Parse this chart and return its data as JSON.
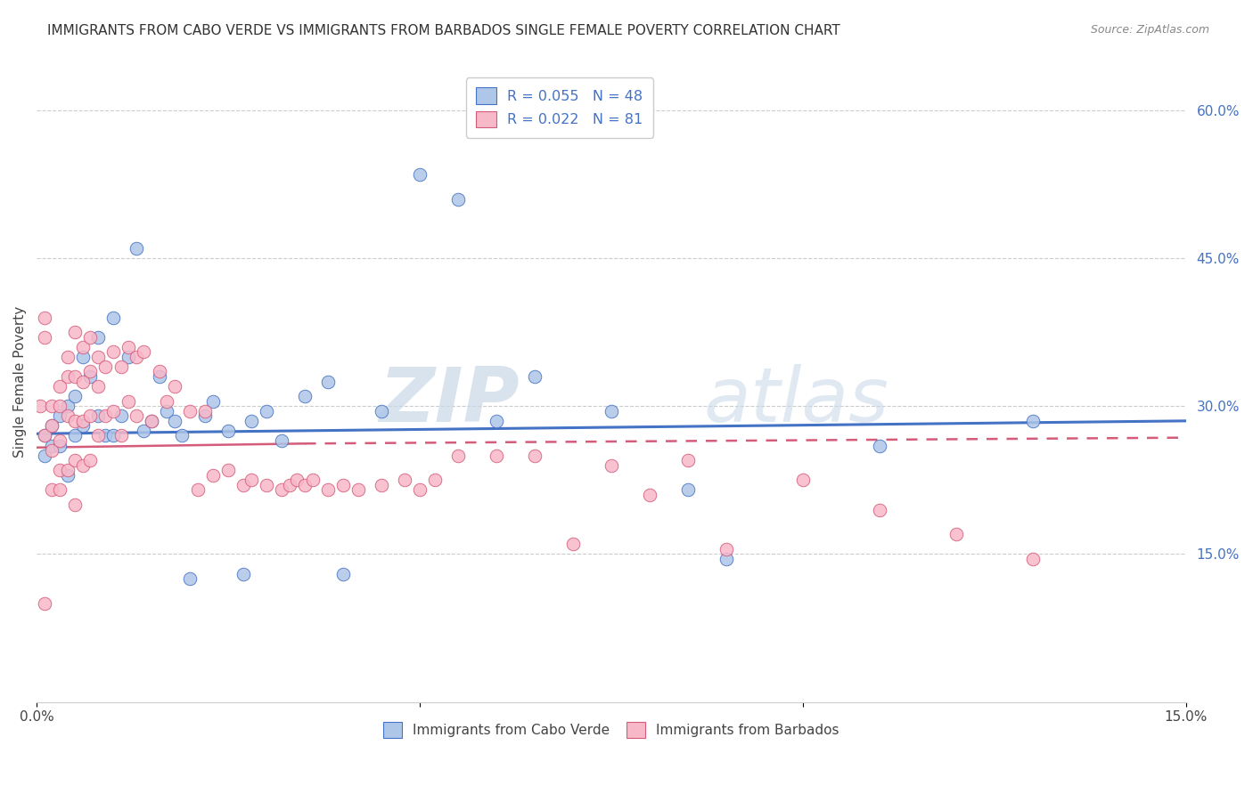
{
  "title": "IMMIGRANTS FROM CABO VERDE VS IMMIGRANTS FROM BARBADOS SINGLE FEMALE POVERTY CORRELATION CHART",
  "source": "Source: ZipAtlas.com",
  "ylabel": "Single Female Poverty",
  "legend_label1": "Immigrants from Cabo Verde",
  "legend_label2": "Immigrants from Barbados",
  "R1": 0.055,
  "N1": 48,
  "R2": 0.022,
  "N2": 81,
  "color1": "#aec6e8",
  "color2": "#f7b8c8",
  "line1_color": "#4472c4",
  "line2_color": "#d45b7a",
  "watermark_zip": "ZIP",
  "watermark_atlas": "atlas",
  "xlim": [
    0.0,
    0.15
  ],
  "ylim": [
    0.0,
    0.65
  ],
  "cabo_verde_x": [
    0.001,
    0.001,
    0.002,
    0.002,
    0.003,
    0.003,
    0.004,
    0.004,
    0.005,
    0.005,
    0.006,
    0.006,
    0.007,
    0.008,
    0.008,
    0.009,
    0.01,
    0.01,
    0.011,
    0.012,
    0.013,
    0.014,
    0.015,
    0.016,
    0.017,
    0.018,
    0.019,
    0.02,
    0.022,
    0.023,
    0.025,
    0.027,
    0.028,
    0.03,
    0.032,
    0.035,
    0.038,
    0.04,
    0.045,
    0.05,
    0.055,
    0.06,
    0.065,
    0.075,
    0.085,
    0.09,
    0.11,
    0.13
  ],
  "cabo_verde_y": [
    0.27,
    0.25,
    0.28,
    0.26,
    0.29,
    0.26,
    0.3,
    0.23,
    0.31,
    0.27,
    0.35,
    0.28,
    0.33,
    0.37,
    0.29,
    0.27,
    0.39,
    0.27,
    0.29,
    0.35,
    0.46,
    0.275,
    0.285,
    0.33,
    0.295,
    0.285,
    0.27,
    0.125,
    0.29,
    0.305,
    0.275,
    0.13,
    0.285,
    0.295,
    0.265,
    0.31,
    0.325,
    0.13,
    0.295,
    0.535,
    0.51,
    0.285,
    0.33,
    0.295,
    0.215,
    0.145,
    0.26,
    0.285
  ],
  "barbados_x": [
    0.0005,
    0.001,
    0.001,
    0.001,
    0.001,
    0.002,
    0.002,
    0.002,
    0.002,
    0.003,
    0.003,
    0.003,
    0.003,
    0.003,
    0.004,
    0.004,
    0.004,
    0.004,
    0.005,
    0.005,
    0.005,
    0.005,
    0.005,
    0.006,
    0.006,
    0.006,
    0.006,
    0.007,
    0.007,
    0.007,
    0.007,
    0.008,
    0.008,
    0.008,
    0.009,
    0.009,
    0.01,
    0.01,
    0.011,
    0.011,
    0.012,
    0.012,
    0.013,
    0.013,
    0.014,
    0.015,
    0.016,
    0.017,
    0.018,
    0.02,
    0.021,
    0.022,
    0.023,
    0.025,
    0.027,
    0.028,
    0.03,
    0.032,
    0.033,
    0.034,
    0.035,
    0.036,
    0.038,
    0.04,
    0.042,
    0.045,
    0.048,
    0.05,
    0.052,
    0.055,
    0.06,
    0.065,
    0.07,
    0.075,
    0.08,
    0.085,
    0.09,
    0.1,
    0.11,
    0.12,
    0.13
  ],
  "barbados_y": [
    0.3,
    0.39,
    0.37,
    0.27,
    0.1,
    0.3,
    0.28,
    0.255,
    0.215,
    0.32,
    0.3,
    0.265,
    0.235,
    0.215,
    0.35,
    0.33,
    0.29,
    0.235,
    0.375,
    0.33,
    0.285,
    0.245,
    0.2,
    0.36,
    0.325,
    0.285,
    0.24,
    0.37,
    0.335,
    0.29,
    0.245,
    0.35,
    0.32,
    0.27,
    0.34,
    0.29,
    0.355,
    0.295,
    0.34,
    0.27,
    0.36,
    0.305,
    0.35,
    0.29,
    0.355,
    0.285,
    0.335,
    0.305,
    0.32,
    0.295,
    0.215,
    0.295,
    0.23,
    0.235,
    0.22,
    0.225,
    0.22,
    0.215,
    0.22,
    0.225,
    0.22,
    0.225,
    0.215,
    0.22,
    0.215,
    0.22,
    0.225,
    0.215,
    0.225,
    0.25,
    0.25,
    0.25,
    0.16,
    0.24,
    0.21,
    0.245,
    0.155,
    0.225,
    0.195,
    0.17,
    0.145
  ]
}
